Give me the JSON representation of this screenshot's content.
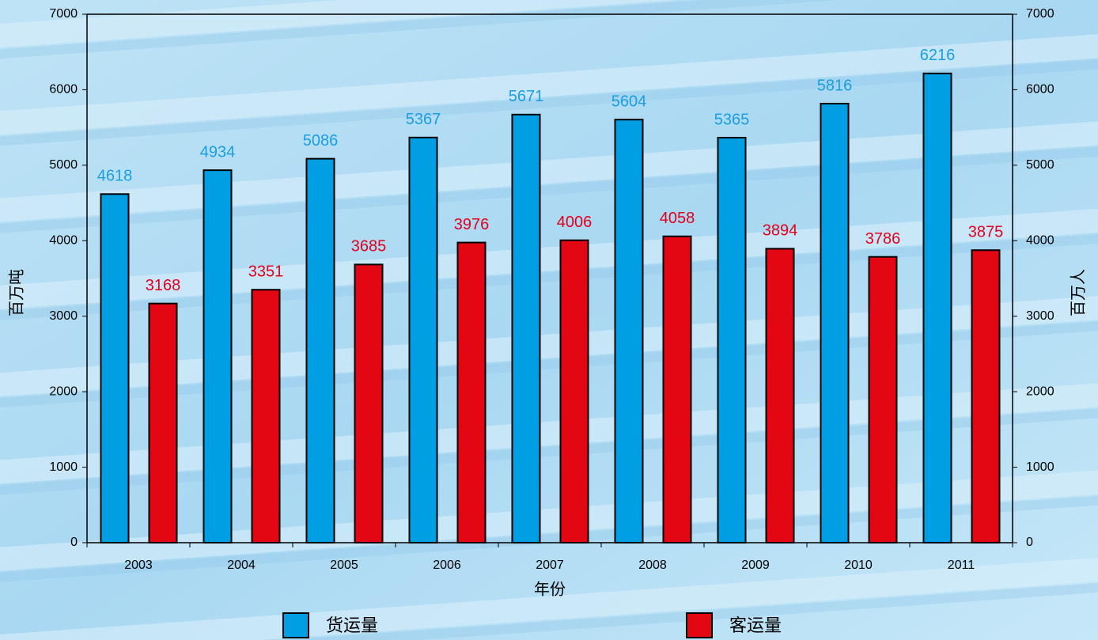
{
  "chart_data": {
    "type": "bar",
    "xlabel": "年份",
    "ylabel": "百万吨",
    "y2label": "百万人",
    "categories": [
      "2003",
      "2004",
      "2005",
      "2006",
      "2007",
      "2008",
      "2009",
      "2010",
      "2011"
    ],
    "series": [
      {
        "name": "货运量",
        "color": "#009fe3",
        "label_color": "#1a9ee0",
        "values": [
          4618,
          4934,
          5086,
          5367,
          5671,
          5604,
          5365,
          5816,
          6216
        ]
      },
      {
        "name": "客运量",
        "color": "#e30613",
        "label_color": "#e3001b",
        "axis": "y2",
        "values": [
          3168,
          3351,
          3685,
          3976,
          4006,
          4058,
          3894,
          3786,
          3875
        ]
      }
    ],
    "ylim": [
      0,
      7000
    ],
    "yticks": [
      0,
      1000,
      2000,
      3000,
      4000,
      5000,
      6000,
      7000
    ],
    "y2lim": [
      0,
      7000
    ],
    "y2ticks": [
      0,
      1000,
      2000,
      3000,
      4000,
      5000,
      6000,
      7000
    ],
    "legend": "bottom"
  }
}
